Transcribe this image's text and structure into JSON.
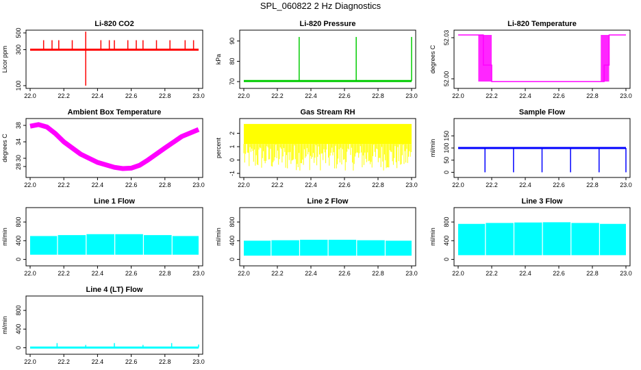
{
  "figure_title": "SPL_060822  2 Hz Diagnostics",
  "chart_data": [
    {
      "type": "line",
      "title": "Li-820 CO2",
      "xlabel": "",
      "ylabel": "Licor ppm",
      "color": "#ff0000",
      "xlim": [
        22.0,
        23.0
      ],
      "ylim": [
        100,
        500
      ],
      "log_y": true,
      "x_ticks": [
        "22.0",
        "22.2",
        "22.4",
        "22.6",
        "22.8",
        "23.0"
      ],
      "y_ticks": [
        {
          "value": 100,
          "label": "100"
        },
        {
          "value": 300,
          "label": "300"
        },
        {
          "value": 500,
          "label": "500"
        }
      ],
      "baseline": 300,
      "spikes": [
        {
          "x": 22.08,
          "y": 400
        },
        {
          "x": 22.13,
          "y": 400
        },
        {
          "x": 22.17,
          "y": 400
        },
        {
          "x": 22.25,
          "y": 400
        },
        {
          "x": 22.33,
          "y": 520
        },
        {
          "x": 22.33,
          "y": 100
        },
        {
          "x": 22.42,
          "y": 400
        },
        {
          "x": 22.47,
          "y": 400
        },
        {
          "x": 22.5,
          "y": 400
        },
        {
          "x": 22.58,
          "y": 400
        },
        {
          "x": 22.63,
          "y": 400
        },
        {
          "x": 22.67,
          "y": 400
        },
        {
          "x": 22.75,
          "y": 400
        },
        {
          "x": 22.83,
          "y": 400
        },
        {
          "x": 22.92,
          "y": 400
        },
        {
          "x": 22.97,
          "y": 400
        }
      ]
    },
    {
      "type": "line",
      "title": "Li-820 Pressure",
      "xlabel": "",
      "ylabel": "kPa",
      "color": "#00cc00",
      "xlim": [
        22.0,
        23.0
      ],
      "ylim": [
        68,
        94
      ],
      "x_ticks": [
        "22.0",
        "22.2",
        "22.4",
        "22.6",
        "22.8",
        "23.0"
      ],
      "y_ticks": [
        {
          "value": 70,
          "label": "70"
        },
        {
          "value": 80,
          "label": "80"
        },
        {
          "value": 90,
          "label": "90"
        }
      ],
      "baseline": 70.3,
      "spikes": [
        {
          "x": 22.33,
          "y": 92
        },
        {
          "x": 22.67,
          "y": 92
        },
        {
          "x": 23.0,
          "y": 92
        }
      ]
    },
    {
      "type": "step",
      "title": "Li-820 Temperature",
      "xlabel": "",
      "ylabel": "degrees C",
      "color": "#ff00ff",
      "xlim": [
        22.0,
        23.0
      ],
      "ylim": [
        51.995,
        52.0335
      ],
      "x_ticks": [
        "22.0",
        "22.2",
        "22.4",
        "22.6",
        "22.8",
        "23.0"
      ],
      "y_ticks": [
        {
          "value": 52.0,
          "label": "52.00"
        },
        {
          "value": 52.03,
          "label": "52.03"
        }
      ],
      "x": [
        22.0,
        22.12,
        22.15,
        22.2,
        22.85,
        22.87,
        22.9,
        23.0
      ],
      "y": [
        52.032,
        52.032,
        52.01,
        51.998,
        51.998,
        52.01,
        52.032,
        52.032
      ]
    },
    {
      "type": "line",
      "title": "Ambient Box Temperature",
      "xlabel": "",
      "ylabel": "degrees C",
      "color": "#ff00ff",
      "xlim": [
        22.0,
        23.0
      ],
      "ylim": [
        26,
        39
      ],
      "x_ticks": [
        "22.0",
        "22.2",
        "22.4",
        "22.6",
        "22.8",
        "23.0"
      ],
      "y_ticks": [
        {
          "value": 28,
          "label": "28"
        },
        {
          "value": 30,
          "label": "30"
        },
        {
          "value": 34,
          "label": "34"
        },
        {
          "value": 38,
          "label": "38"
        }
      ],
      "x": [
        22.0,
        22.05,
        22.1,
        22.15,
        22.2,
        22.3,
        22.4,
        22.5,
        22.55,
        22.6,
        22.65,
        22.7,
        22.8,
        22.9,
        23.0
      ],
      "y": [
        37.8,
        38.2,
        37.6,
        36.0,
        34.0,
        31.0,
        29.0,
        27.8,
        27.5,
        27.6,
        28.3,
        29.6,
        32.5,
        35.3,
        37.0
      ]
    },
    {
      "type": "noise",
      "title": "Gas Stream RH",
      "xlabel": "",
      "ylabel": "percent",
      "color": "#ffff00",
      "xlim": [
        22.0,
        23.0
      ],
      "ylim": [
        -1.1,
        2.9
      ],
      "x_ticks": [
        "22.0",
        "22.2",
        "22.4",
        "22.6",
        "22.8",
        "23.0"
      ],
      "y_ticks": [
        {
          "value": -1,
          "label": "-1"
        },
        {
          "value": 0,
          "label": "0"
        },
        {
          "value": 1,
          "label": "1"
        },
        {
          "value": 2,
          "label": "2"
        }
      ],
      "band_top": 2.7,
      "band_bottom": 1.2,
      "min": -0.8
    },
    {
      "type": "line",
      "title": "Sample Flow",
      "xlabel": "",
      "ylabel": "ml/min",
      "color": "#0000ff",
      "xlim": [
        22.0,
        23.0
      ],
      "ylim": [
        -10,
        210
      ],
      "x_ticks": [
        "22.0",
        "22.2",
        "22.4",
        "22.6",
        "22.8",
        "23.0"
      ],
      "y_ticks": [
        {
          "value": 0,
          "label": "0"
        },
        {
          "value": 50,
          "label": "50"
        },
        {
          "value": 100,
          "label": "100"
        },
        {
          "value": 150,
          "label": "150"
        }
      ],
      "baseline": 100,
      "spikes": [
        {
          "x": 22.16,
          "y": 0
        },
        {
          "x": 22.33,
          "y": 0
        },
        {
          "x": 22.5,
          "y": 0
        },
        {
          "x": 22.67,
          "y": 0
        },
        {
          "x": 22.84,
          "y": 0
        },
        {
          "x": 23.0,
          "y": 0
        }
      ]
    },
    {
      "type": "blocks",
      "title": "Line 1 Flow",
      "xlabel": "",
      "ylabel": "ml/min",
      "color": "#00ffff",
      "xlim": [
        22.0,
        23.0
      ],
      "ylim": [
        -80,
        1050
      ],
      "x_ticks": [
        "22.0",
        "22.2",
        "22.4",
        "22.6",
        "22.8",
        "23.0"
      ],
      "y_ticks": [
        {
          "value": 0,
          "label": "0"
        },
        {
          "value": 400,
          "label": "400"
        },
        {
          "value": 800,
          "label": "800"
        }
      ],
      "bottom": 100,
      "blocks": [
        {
          "x0": 22.0,
          "x1": 22.16,
          "top": 500
        },
        {
          "x0": 22.165,
          "x1": 22.33,
          "top": 520
        },
        {
          "x0": 22.335,
          "x1": 22.5,
          "top": 540
        },
        {
          "x0": 22.505,
          "x1": 22.67,
          "top": 540
        },
        {
          "x0": 22.675,
          "x1": 22.84,
          "top": 520
        },
        {
          "x0": 22.845,
          "x1": 23.0,
          "top": 500
        }
      ]
    },
    {
      "type": "blocks",
      "title": "Line 2 Flow",
      "xlabel": "",
      "ylabel": "ml/min",
      "color": "#00ffff",
      "xlim": [
        22.0,
        23.0
      ],
      "ylim": [
        -80,
        1050
      ],
      "x_ticks": [
        "22.0",
        "22.2",
        "22.4",
        "22.6",
        "22.8",
        "23.0"
      ],
      "y_ticks": [
        {
          "value": 0,
          "label": "0"
        },
        {
          "value": 400,
          "label": "400"
        },
        {
          "value": 800,
          "label": "800"
        }
      ],
      "bottom": 80,
      "blocks": [
        {
          "x0": 22.0,
          "x1": 22.16,
          "top": 400
        },
        {
          "x0": 22.165,
          "x1": 22.33,
          "top": 410
        },
        {
          "x0": 22.335,
          "x1": 22.5,
          "top": 420
        },
        {
          "x0": 22.505,
          "x1": 22.67,
          "top": 420
        },
        {
          "x0": 22.675,
          "x1": 22.84,
          "top": 410
        },
        {
          "x0": 22.845,
          "x1": 23.0,
          "top": 400
        }
      ]
    },
    {
      "type": "blocks",
      "title": "Line 3 Flow",
      "xlabel": "",
      "ylabel": "ml/min",
      "color": "#00ffff",
      "xlim": [
        22.0,
        23.0
      ],
      "ylim": [
        -80,
        1050
      ],
      "x_ticks": [
        "22.0",
        "22.2",
        "22.4",
        "22.6",
        "22.8",
        "23.0"
      ],
      "y_ticks": [
        {
          "value": 0,
          "label": "0"
        },
        {
          "value": 400,
          "label": "400"
        },
        {
          "value": 800,
          "label": "800"
        }
      ],
      "bottom": 90,
      "blocks": [
        {
          "x0": 22.0,
          "x1": 22.16,
          "top": 760
        },
        {
          "x0": 22.165,
          "x1": 22.33,
          "top": 780
        },
        {
          "x0": 22.335,
          "x1": 22.5,
          "top": 790
        },
        {
          "x0": 22.505,
          "x1": 22.67,
          "top": 795
        },
        {
          "x0": 22.675,
          "x1": 22.84,
          "top": 780
        },
        {
          "x0": 22.845,
          "x1": 23.0,
          "top": 760
        }
      ]
    },
    {
      "type": "line",
      "title": "Line 4 (LT) Flow",
      "xlabel": "",
      "ylabel": "ml/min",
      "color": "#00ffff",
      "xlim": [
        22.0,
        23.0
      ],
      "ylim": [
        -80,
        1050
      ],
      "x_ticks": [
        "22.0",
        "22.2",
        "22.4",
        "22.6",
        "22.8",
        "23.0"
      ],
      "y_ticks": [
        {
          "value": 0,
          "label": "0"
        },
        {
          "value": 400,
          "label": "400"
        },
        {
          "value": 800,
          "label": "800"
        }
      ],
      "baseline": 5,
      "spikes": [
        {
          "x": 22.16,
          "y": 100
        },
        {
          "x": 22.33,
          "y": 60
        },
        {
          "x": 22.5,
          "y": 100
        },
        {
          "x": 22.67,
          "y": 60
        },
        {
          "x": 22.84,
          "y": 100
        },
        {
          "x": 23.0,
          "y": 70
        }
      ]
    }
  ]
}
